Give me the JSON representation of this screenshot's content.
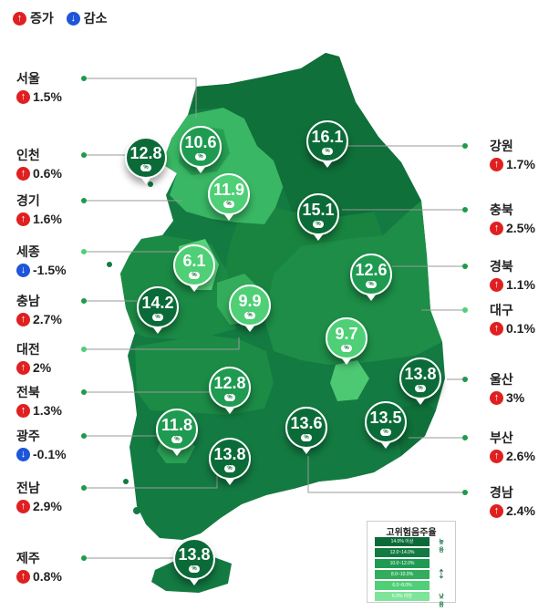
{
  "legend": {
    "increase_label": "증가",
    "decrease_label": "감소",
    "up_color": "#e02020",
    "down_color": "#1e56d9"
  },
  "regions": [
    {
      "name": "서울",
      "change": "1.5%",
      "direction": "up",
      "rate": "10.6"
    },
    {
      "name": "인천",
      "change": "0.6%",
      "direction": "up",
      "rate": "12.8"
    },
    {
      "name": "경기",
      "change": "1.6%",
      "direction": "up",
      "rate": "11.9"
    },
    {
      "name": "세종",
      "change": "-1.5%",
      "direction": "down",
      "rate": "6.1"
    },
    {
      "name": "충남",
      "change": "2.7%",
      "direction": "up",
      "rate": "14.2"
    },
    {
      "name": "대전",
      "change": "2%",
      "direction": "up",
      "rate": "9.9"
    },
    {
      "name": "전북",
      "change": "1.3%",
      "direction": "up",
      "rate": "12.8"
    },
    {
      "name": "광주",
      "change": "-0.1%",
      "direction": "down",
      "rate": "11.8"
    },
    {
      "name": "전남",
      "change": "2.9%",
      "direction": "up",
      "rate": "13.8"
    },
    {
      "name": "제주",
      "change": "0.8%",
      "direction": "up",
      "rate": "13.8"
    },
    {
      "name": "강원",
      "change": "1.7%",
      "direction": "up",
      "rate": "16.1"
    },
    {
      "name": "충북",
      "change": "2.5%",
      "direction": "up",
      "rate": "15.1"
    },
    {
      "name": "경북",
      "change": "1.1%",
      "direction": "up",
      "rate": "12.6"
    },
    {
      "name": "대구",
      "change": "0.1%",
      "direction": "up",
      "rate": "9.7"
    },
    {
      "name": "울산",
      "change": "3%",
      "direction": "up",
      "rate": "13.8"
    },
    {
      "name": "부산",
      "change": "2.6%",
      "direction": "up",
      "rate": "13.5"
    },
    {
      "name": "경남",
      "change": "2.4%",
      "direction": "up",
      "rate": "13.6"
    }
  ],
  "pin_unit": "%",
  "scale": {
    "title": "고위험음주율",
    "rows": [
      "14.0% 이상",
      "12.0~14.0%",
      "10.0~12.0%",
      "8.0~10.0%",
      "6.0~8.0%",
      "6.0% 미만"
    ],
    "top_label": "높음",
    "bottom_label": "낮음"
  }
}
